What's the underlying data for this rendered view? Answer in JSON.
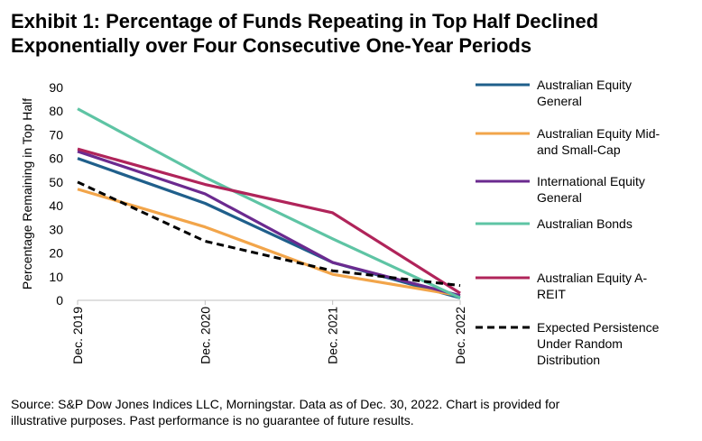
{
  "header": {
    "title_line1": "Exhibit 1: Percentage of Funds Repeating in Top Half Declined",
    "title_line2": "Exponentially over Four Consecutive One-Year Periods"
  },
  "footer": {
    "source_line1": "Source: S&P Dow Jones Indices LLC, Morningstar.  Data as of Dec. 30, 2022.  Chart is provided for",
    "source_line2": "illustrative purposes.  Past performance is no guarantee of future results."
  },
  "chart_data": {
    "type": "line",
    "title": "Exhibit 1: Percentage of Funds Repeating in Top Half Declined Exponentially over Four Consecutive One-Year Periods",
    "xlabel": "",
    "ylabel": "Percentage Remaining in Top Half",
    "ylim": [
      0,
      90
    ],
    "yticks": [
      0,
      10,
      20,
      30,
      40,
      50,
      60,
      70,
      80,
      90
    ],
    "categories": [
      "Dec. 2019",
      "Dec. 2020",
      "Dec. 2021",
      "Dec. 2022"
    ],
    "legend_position": "right",
    "grid": false,
    "series": [
      {
        "name": "Australian Equity General",
        "legend_lines": [
          "Australian Equity",
          "General"
        ],
        "values": [
          60,
          41,
          16,
          1
        ],
        "color": "#1f5f8b",
        "dash": "solid"
      },
      {
        "name": "Australian Equity Mid- and Small-Cap",
        "legend_lines": [
          "Australian Equity Mid-",
          "and Small-Cap"
        ],
        "values": [
          47,
          31,
          11,
          2
        ],
        "color": "#f2a54a",
        "dash": "solid"
      },
      {
        "name": "International Equity General",
        "legend_lines": [
          "International Equity",
          "General"
        ],
        "values": [
          63,
          45,
          16,
          2
        ],
        "color": "#6b2a8f",
        "dash": "solid"
      },
      {
        "name": "Australian Bonds",
        "legend_lines": [
          "Australian Bonds"
        ],
        "values": [
          81,
          52,
          26,
          1
        ],
        "color": "#5ec4a4",
        "dash": "solid"
      },
      {
        "name": "Australian Equity A-REIT",
        "legend_lines": [
          "Australian Equity A-",
          "REIT"
        ],
        "values": [
          64,
          49,
          37,
          3
        ],
        "color": "#b0245a",
        "dash": "solid"
      },
      {
        "name": "Expected Persistence Under Random Distribution",
        "legend_lines": [
          "Expected Persistence",
          "Under Random",
          "Distribution"
        ],
        "values": [
          50,
          25,
          12.5,
          6.25
        ],
        "color": "#000000",
        "dash": "dashed"
      }
    ]
  }
}
